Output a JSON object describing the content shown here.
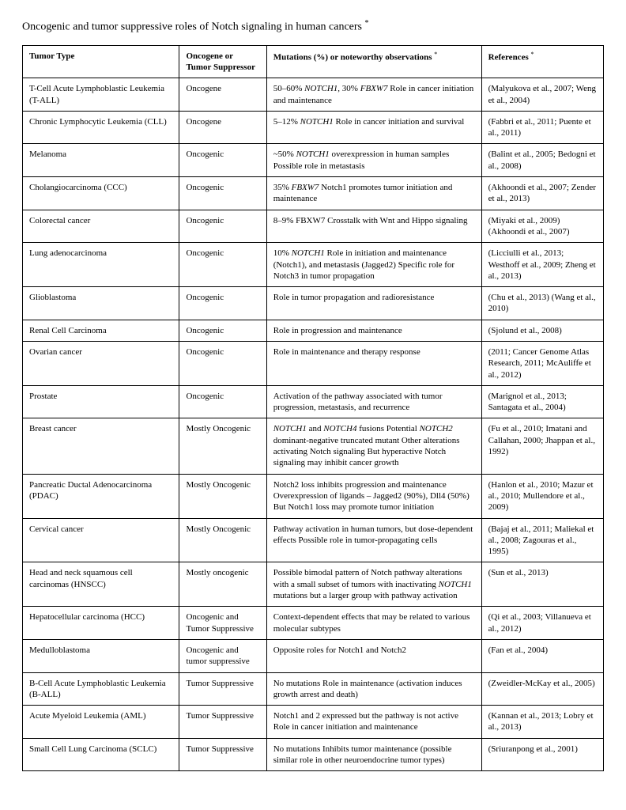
{
  "title_prefix": "Oncogenic and tumor suppressive roles of Notch signaling in human cancers",
  "title_asterisk": "*",
  "columns": {
    "tumor": "Tumor Type",
    "role": "Oncogene or Tumor Suppressor",
    "mutations_prefix": "Mutations (%) or noteworthy observations",
    "mutations_ast": "*",
    "refs_prefix": "References",
    "refs_ast": "*"
  },
  "rows": [
    {
      "tumor": "T-Cell Acute Lymphoblastic Leukemia (T-ALL)",
      "role": "Oncogene",
      "mut": [
        {
          "t": "50–60% "
        },
        {
          "t": "NOTCH1",
          "i": true
        },
        {
          "t": ", 30% "
        },
        {
          "t": "FBXW7",
          "i": true
        },
        {
          "t": " Role in cancer initiation and maintenance"
        }
      ],
      "refs": "(Malyukova et al., 2007; Weng et al., 2004)"
    },
    {
      "tumor": "Chronic Lymphocytic Leukemia (CLL)",
      "role": "Oncogene",
      "mut": [
        {
          "t": "5–12% "
        },
        {
          "t": "NOTCH1",
          "i": true
        },
        {
          "t": " Role in cancer initiation and survival"
        }
      ],
      "refs": "(Fabbri et al., 2011; Puente et al., 2011)"
    },
    {
      "tumor": "Melanoma",
      "role": "Oncogenic",
      "mut": [
        {
          "t": "~50% "
        },
        {
          "t": "NOTCH1",
          "i": true
        },
        {
          "t": " overexpression in human samples Possible role in metastasis"
        }
      ],
      "refs": "(Balint et al., 2005; Bedogni et al., 2008)"
    },
    {
      "tumor": "Cholangiocarcinoma (CCC)",
      "role": "Oncogenic",
      "mut": [
        {
          "t": "35% "
        },
        {
          "t": "FBXW7",
          "i": true
        },
        {
          "t": " Notch1 promotes tumor initiation and maintenance"
        }
      ],
      "refs": "(Akhoondi et al., 2007; Zender et al., 2013)"
    },
    {
      "tumor": "Colorectal cancer",
      "role": "Oncogenic",
      "mut": [
        {
          "t": "8–9% FBXW7 Crosstalk with Wnt and Hippo signaling"
        }
      ],
      "refs": "(Miyaki et al., 2009) (Akhoondi et al., 2007)"
    },
    {
      "tumor": "Lung adenocarcinoma",
      "role": "Oncogenic",
      "mut": [
        {
          "t": "10% "
        },
        {
          "t": "NOTCH1",
          "i": true
        },
        {
          "t": " Role in initiation and maintenance (Notch1), and metastasis (Jagged2) Specific role for Notch3 in tumor propagation"
        }
      ],
      "refs": "(Licciulli et al., 2013; Westhoff et al., 2009; Zheng et al., 2013)"
    },
    {
      "tumor": "Glioblastoma",
      "role": "Oncogenic",
      "mut": [
        {
          "t": "Role in tumor propagation and radioresistance"
        }
      ],
      "refs": "(Chu et al., 2013) (Wang et al., 2010)"
    },
    {
      "tumor": "Renal Cell Carcinoma",
      "role": "Oncogenic",
      "mut": [
        {
          "t": "Role in progression and maintenance"
        }
      ],
      "refs": "(Sjolund et al., 2008)"
    },
    {
      "tumor": "Ovarian cancer",
      "role": "Oncogenic",
      "mut": [
        {
          "t": "Role in maintenance and therapy response"
        }
      ],
      "refs": "(2011; Cancer Genome Atlas Research, 2011; McAuliffe et al., 2012)"
    },
    {
      "tumor": "Prostate",
      "role": "Oncogenic",
      "mut": [
        {
          "t": "Activation of the pathway associated with tumor progression, metastasis, and recurrence"
        }
      ],
      "refs": "(Marignol et al., 2013; Santagata et al., 2004)"
    },
    {
      "tumor": "Breast cancer",
      "role": "Mostly Oncogenic",
      "mut": [
        {
          "t": "NOTCH1",
          "i": true
        },
        {
          "t": " and "
        },
        {
          "t": "NOTCH4",
          "i": true
        },
        {
          "t": " fusions Potential "
        },
        {
          "t": "NOTCH2",
          "i": true
        },
        {
          "t": " dominant-negative truncated mutant Other alterations activating Notch signaling But hyperactive Notch signaling may inhibit cancer growth"
        }
      ],
      "refs": "(Fu et al., 2010; Imatani and Callahan, 2000; Jhappan et al., 1992)"
    },
    {
      "tumor": "Pancreatic Ductal Adenocarcinoma (PDAC)",
      "role": "Mostly Oncogenic",
      "mut": [
        {
          "t": "Notch2 loss inhibits progression and maintenance Overexpression of ligands – Jagged2 (90%), Dll4 (50%) But Notch1 loss may promote tumor initiation"
        }
      ],
      "refs": "(Hanlon et al., 2010; Mazur et al., 2010; Mullendore et al., 2009)"
    },
    {
      "tumor": "Cervical cancer",
      "role": "Mostly Oncogenic",
      "mut": [
        {
          "t": "Pathway activation in human tumors, but dose-dependent effects Possible role in tumor-propagating cells"
        }
      ],
      "refs": "(Bajaj et al., 2011; Maliekal et al., 2008; Zagouras et al., 1995)"
    },
    {
      "tumor": "Head and neck squamous cell carcinomas (HNSCC)",
      "role": "Mostly oncogenic",
      "mut": [
        {
          "t": "Possible bimodal pattern of Notch pathway alterations with a small subset of tumors with inactivating "
        },
        {
          "t": "NOTCH1",
          "i": true
        },
        {
          "t": " mutations but a larger group with pathway activation"
        }
      ],
      "refs": "(Sun et al., 2013)"
    },
    {
      "tumor": "Hepatocellular carcinoma (HCC)",
      "role": "Oncogenic and Tumor Suppressive",
      "mut": [
        {
          "t": "Context-dependent effects that may be related to various molecular subtypes"
        }
      ],
      "refs": "(Qi et al., 2003; Villanueva et al., 2012)"
    },
    {
      "tumor": "Medulloblastoma",
      "role": "Oncogenic and tumor suppressive",
      "mut": [
        {
          "t": "Opposite roles for Notch1 and Notch2"
        }
      ],
      "refs": "(Fan et al., 2004)"
    },
    {
      "tumor": "B-Cell Acute Lymphoblastic Leukemia (B-ALL)",
      "role": "Tumor Suppressive",
      "mut": [
        {
          "t": "No mutations Role in maintenance (activation induces growth arrest and death)"
        }
      ],
      "refs": "(Zweidler-McKay et al., 2005)"
    },
    {
      "tumor": "Acute Myeloid Leukemia (AML)",
      "role": "Tumor Suppressive",
      "mut": [
        {
          "t": "Notch1 and 2 expressed but the pathway is not active Role in cancer initiation and maintenance"
        }
      ],
      "refs": "(Kannan et al., 2013; Lobry et al., 2013)"
    },
    {
      "tumor": "Small Cell Lung Carcinoma (SCLC)",
      "role": "Tumor Suppressive",
      "mut": [
        {
          "t": "No mutations Inhibits tumor maintenance (possible similar role in other neuroendocrine tumor types)"
        }
      ],
      "refs": "(Sriuranpong et al., 2001)"
    }
  ]
}
